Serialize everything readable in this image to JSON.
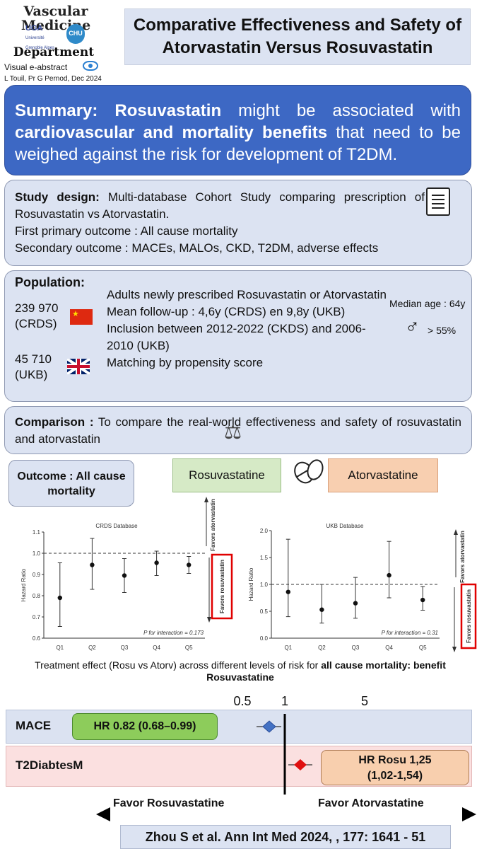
{
  "header": {
    "logo_title": "Vascular Medicine",
    "logo_dept": "Department",
    "uga_label": "UGA",
    "uga_sub": "Université Grenoble Alpes",
    "chu_label": "CHU",
    "visual_abstract": "Visual e-abstract",
    "authors": "L Touil, Pr G Pernod, Dec 2024",
    "title": "Comparative Effectiveness and Safety of Atorvastatin Versus Rosuvastatin"
  },
  "summary": {
    "label": "Summary:",
    "part1": "Rosuvastatin",
    "part2": " might be associated with ",
    "part3": "cardiovascular and mortality benefits",
    "part4": " that need to be weighed against the risk for development of T2DM."
  },
  "design": {
    "label": "Study design:",
    "line1": " Multi-database Cohort Study comparing prescription of Rosuvastatin vs Atorvastatin.",
    "line2": "First primary outcome : All cause mortality",
    "line3": "Secondary outcome : MACEs, MALOs, CKD, T2DM, adverse effects"
  },
  "population": {
    "label": "Population:",
    "crds_n": "239 970",
    "crds_name": "(CRDS)",
    "ukb_n": "45 710",
    "ukb_name": "(UKB)",
    "text1": "Adults newly prescribed Rosuvastatin or Atorvastatin",
    "text2": "Mean follow-up : 4,6y (CRDS) en 9,8y (UKB)",
    "text3": "Inclusion between 2012-2022 (CKDS) and 2006-2010 (UKB)",
    "text4": "Matching by propensity score",
    "median_age": "Median age : 64y",
    "male_symbol": "♂",
    "male_pct": "> 55%"
  },
  "comparison": {
    "label": "Comparison :",
    "text": " To compare the real-world effectiveness and safety of rosuvastatin and atorvastatin"
  },
  "outcome": {
    "label": "Outcome : All cause mortality",
    "rosu": "Rosuvastatine",
    "ator": "Atorvastatine"
  },
  "chart_data": [
    {
      "type": "scatter",
      "title": "CRDS Database",
      "ylabel": "Hazard Ratio",
      "categories": [
        "Q1",
        "Q2",
        "Q3",
        "Q4",
        "Q5"
      ],
      "values": [
        0.79,
        0.945,
        0.895,
        0.955,
        0.945
      ],
      "lower": [
        0.655,
        0.83,
        0.815,
        0.895,
        0.905
      ],
      "upper": [
        0.955,
        1.07,
        0.975,
        1.01,
        0.985
      ],
      "ylim": [
        0.6,
        1.1
      ],
      "yticks": [
        "0.6",
        "0.7",
        "0.8",
        "0.9",
        "1.0",
        "1.1"
      ],
      "reference": 1.0,
      "annotation": "P for interaction = 0.173",
      "favors_top": "Favors atorvastatin",
      "favors_bottom": "Favors rosuvastatin"
    },
    {
      "type": "scatter",
      "title": "UKB Database",
      "ylabel": "Hazard Ratio",
      "categories": [
        "Q1",
        "Q2",
        "Q3",
        "Q4",
        "Q5"
      ],
      "values": [
        0.86,
        0.53,
        0.65,
        1.17,
        0.71
      ],
      "lower": [
        0.4,
        0.28,
        0.37,
        0.75,
        0.52
      ],
      "upper": [
        1.84,
        1.0,
        1.13,
        1.8,
        0.96
      ],
      "ylim": [
        0.0,
        2.0
      ],
      "yticks": [
        "0.0",
        "0.5",
        "1.0",
        "1.5",
        "2.0"
      ],
      "reference": 1.0,
      "annotation": "P for interaction = 0.31",
      "favors_top": "Favors atorvastatin",
      "favors_bottom": "Favors rosuvastatin"
    }
  ],
  "caption": {
    "part1": "Treatment effect (Rosu vs Atorv) across different levels of risk for ",
    "part2": "all cause mortality: benefit Rosuvastatine"
  },
  "forest": {
    "ticks": [
      "0.5",
      "1",
      "5"
    ],
    "mace_label": "MACE",
    "mace_hr": "HR 0.82 (0.68–0.99)",
    "mace_value": 0.82,
    "mace_ci": [
      0.68,
      0.99
    ],
    "t2d_label": "T2DiabtesM",
    "t2d_hr_line1": "HR Rosu 1,25",
    "t2d_hr_line2": "(1,02-1,54)",
    "t2d_value": 1.25,
    "t2d_ci": [
      1.02,
      1.54
    ],
    "favor_left": "Favor Rosuvastatine",
    "favor_right": "Favor Atorvastatine",
    "mace_color": "#4472c4",
    "t2d_color": "#e01010"
  },
  "reference": "Zhou S et al. Ann Int Med 2024, , 177: 1641 - 51"
}
